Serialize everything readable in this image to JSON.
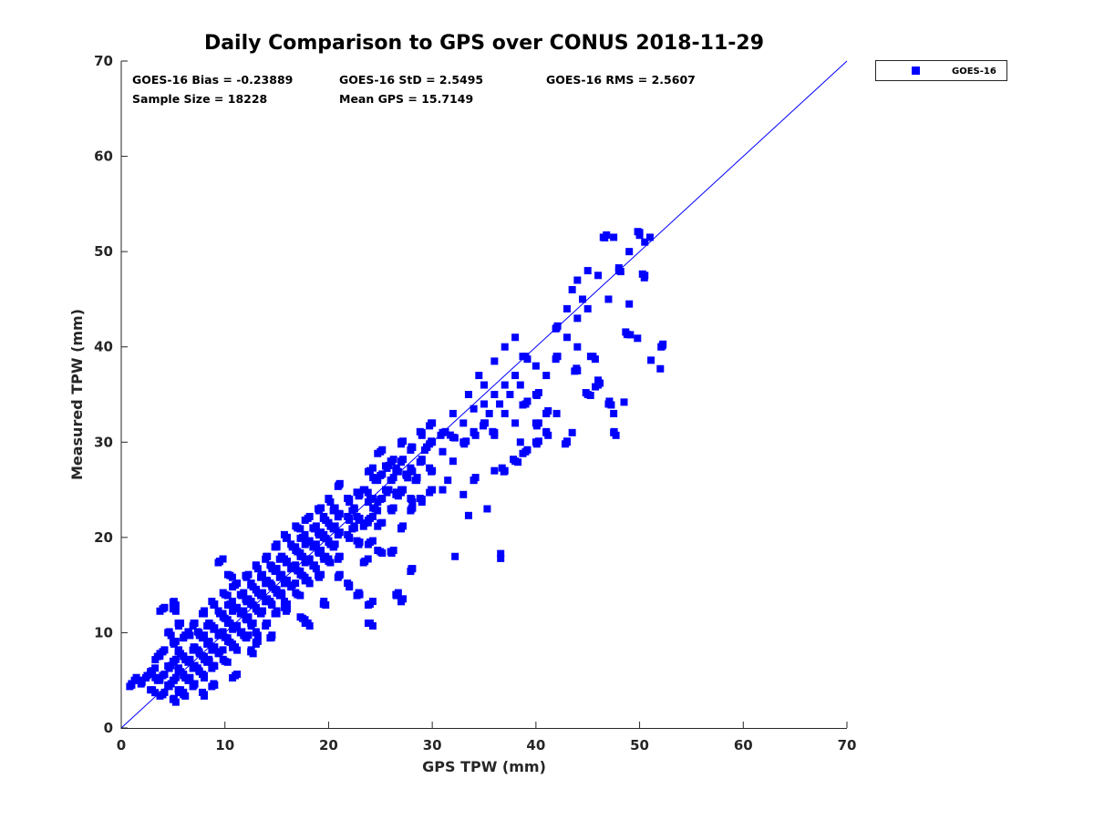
{
  "chart_data": {
    "type": "scatter",
    "title": "Daily Comparison to GPS over CONUS 2018-11-29",
    "xlabel": "GPS TPW (mm)",
    "ylabel": "Measured TPW (mm)",
    "xlim": [
      0,
      70
    ],
    "ylim": [
      0,
      70
    ],
    "xticks": [
      "0",
      "10",
      "20",
      "30",
      "40",
      "50",
      "60",
      "70"
    ],
    "yticks": [
      "0",
      "10",
      "20",
      "30",
      "40",
      "50",
      "60",
      "70"
    ],
    "grid": false,
    "legend": {
      "position": "outside-top-right",
      "entries": [
        "GOES-16"
      ]
    },
    "reference_line": {
      "label": "1:1",
      "from": [
        0,
        0
      ],
      "to": [
        70,
        70
      ]
    },
    "stats": {
      "bias": "GOES-16 Bias = -0.23889",
      "std": "GOES-16 StD = 2.5495",
      "rms": "GOES-16 RMS = 2.5607",
      "sample_size": "Sample Size = 18228",
      "mean_gps": "Mean GPS = 15.7149"
    },
    "series": [
      {
        "name": "GOES-16",
        "color": "#0000ff",
        "marker": "square",
        "points": [
          [
            1,
            4.5
          ],
          [
            1.5,
            5
          ],
          [
            2,
            4.8
          ],
          [
            2.5,
            5.5
          ],
          [
            3,
            4
          ],
          [
            3,
            6
          ],
          [
            3.5,
            5
          ],
          [
            3.5,
            7.5
          ],
          [
            4,
            3.5
          ],
          [
            4,
            5.5
          ],
          [
            4,
            8
          ],
          [
            4.5,
            4.5
          ],
          [
            4.5,
            6.5
          ],
          [
            4.5,
            10
          ],
          [
            5,
            3
          ],
          [
            5,
            5
          ],
          [
            5,
            7
          ],
          [
            5,
            9
          ],
          [
            5,
            12.5
          ],
          [
            5.5,
            4
          ],
          [
            5.5,
            6
          ],
          [
            5.5,
            8
          ],
          [
            5.5,
            11
          ],
          [
            6,
            3.5
          ],
          [
            6,
            5.5
          ],
          [
            6,
            7.5
          ],
          [
            6,
            9.5
          ],
          [
            6.5,
            5
          ],
          [
            6.5,
            7
          ],
          [
            6.5,
            10
          ],
          [
            7,
            4.5
          ],
          [
            7,
            6.5
          ],
          [
            7,
            8.5
          ],
          [
            7,
            11
          ],
          [
            7.5,
            6
          ],
          [
            7.5,
            8
          ],
          [
            7.5,
            10
          ],
          [
            8,
            5.5
          ],
          [
            8,
            7.5
          ],
          [
            8,
            9.5
          ],
          [
            8,
            12
          ],
          [
            8.5,
            7
          ],
          [
            8.5,
            9
          ],
          [
            8.5,
            11
          ],
          [
            9,
            6.5
          ],
          [
            9,
            8.5
          ],
          [
            9,
            10.5
          ],
          [
            9,
            13
          ],
          [
            9.5,
            8
          ],
          [
            9.5,
            10
          ],
          [
            9.5,
            12
          ],
          [
            9.5,
            17.5
          ],
          [
            10,
            7
          ],
          [
            10,
            9.5
          ],
          [
            10,
            11.5
          ],
          [
            10,
            14
          ],
          [
            10.5,
            9
          ],
          [
            10.5,
            11
          ],
          [
            10.5,
            13
          ],
          [
            10.5,
            16
          ],
          [
            11,
            8.5
          ],
          [
            11,
            10.5
          ],
          [
            11,
            12.5
          ],
          [
            11,
            15
          ],
          [
            11.5,
            10
          ],
          [
            11.5,
            12
          ],
          [
            11.5,
            14
          ],
          [
            12,
            9.5
          ],
          [
            12,
            11.5
          ],
          [
            12,
            13.5
          ],
          [
            12,
            16
          ],
          [
            12.5,
            11
          ],
          [
            12.5,
            13
          ],
          [
            12.5,
            15
          ],
          [
            13,
            10
          ],
          [
            13,
            12.5
          ],
          [
            13,
            14.5
          ],
          [
            13,
            17
          ],
          [
            13.5,
            12
          ],
          [
            13.5,
            14
          ],
          [
            13.5,
            16
          ],
          [
            14,
            11
          ],
          [
            14,
            13.5
          ],
          [
            14,
            15.5
          ],
          [
            14,
            18
          ],
          [
            14.5,
            13
          ],
          [
            14.5,
            15
          ],
          [
            14.5,
            17
          ],
          [
            15,
            12
          ],
          [
            15,
            14.5
          ],
          [
            15,
            16.5
          ],
          [
            15,
            19
          ],
          [
            15.5,
            14
          ],
          [
            15.5,
            16
          ],
          [
            15.5,
            18
          ],
          [
            16,
            13
          ],
          [
            16,
            15.5
          ],
          [
            16,
            17.5
          ],
          [
            16,
            20
          ],
          [
            16.5,
            15
          ],
          [
            16.5,
            17
          ],
          [
            16.5,
            19
          ],
          [
            17,
            14
          ],
          [
            17,
            16.5
          ],
          [
            17,
            18.5
          ],
          [
            17,
            21
          ],
          [
            17.5,
            16
          ],
          [
            17.5,
            18
          ],
          [
            17.5,
            20
          ],
          [
            18,
            15.5
          ],
          [
            18,
            17.5
          ],
          [
            18,
            19.5
          ],
          [
            18,
            22
          ],
          [
            18.5,
            17
          ],
          [
            18.5,
            19
          ],
          [
            18.5,
            21
          ],
          [
            19,
            16
          ],
          [
            19,
            18.5
          ],
          [
            19,
            20.5
          ],
          [
            19,
            23
          ],
          [
            19.5,
            18
          ],
          [
            19.5,
            20
          ],
          [
            19.5,
            22
          ],
          [
            20,
            17.5
          ],
          [
            20,
            19.5
          ],
          [
            20,
            21.5
          ],
          [
            20,
            24
          ],
          [
            20.5,
            19
          ],
          [
            20.5,
            21
          ],
          [
            20.5,
            23
          ],
          [
            21,
            18
          ],
          [
            21,
            20.5
          ],
          [
            21,
            22.5
          ],
          [
            21,
            25.5
          ],
          [
            22,
            20
          ],
          [
            22,
            22
          ],
          [
            22,
            24
          ],
          [
            22.5,
            21
          ],
          [
            22.5,
            23
          ],
          [
            23,
            19.5
          ],
          [
            23,
            22
          ],
          [
            23,
            24.5
          ],
          [
            23.5,
            21.5
          ],
          [
            23.5,
            25
          ],
          [
            24,
            22
          ],
          [
            24,
            24
          ],
          [
            24,
            27
          ],
          [
            24.5,
            23
          ],
          [
            24.5,
            26
          ],
          [
            25,
            21.5
          ],
          [
            25,
            24
          ],
          [
            25,
            26.5
          ],
          [
            25,
            29
          ],
          [
            25.5,
            25
          ],
          [
            25.5,
            27.5
          ],
          [
            26,
            23
          ],
          [
            26,
            26
          ],
          [
            26,
            28
          ],
          [
            26.5,
            24.5
          ],
          [
            26.5,
            27
          ],
          [
            27,
            25
          ],
          [
            27,
            28
          ],
          [
            27,
            30
          ],
          [
            27.5,
            26.5
          ],
          [
            28,
            24
          ],
          [
            28,
            27
          ],
          [
            28,
            29.5
          ],
          [
            28.5,
            26
          ],
          [
            29,
            28
          ],
          [
            29,
            31
          ],
          [
            29.5,
            29.5
          ],
          [
            30,
            27
          ],
          [
            30,
            30
          ],
          [
            30,
            32
          ],
          [
            31,
            29
          ],
          [
            31,
            31
          ],
          [
            32,
            28
          ],
          [
            32,
            30.5
          ],
          [
            32,
            33
          ],
          [
            33,
            30
          ],
          [
            33,
            32
          ],
          [
            33.5,
            35
          ],
          [
            34,
            31
          ],
          [
            34,
            33.5
          ],
          [
            34.5,
            37
          ],
          [
            35,
            32
          ],
          [
            35,
            34
          ],
          [
            35,
            36
          ],
          [
            35.5,
            33
          ],
          [
            36,
            31
          ],
          [
            36,
            35
          ],
          [
            36,
            38.5
          ],
          [
            36.5,
            34
          ],
          [
            37,
            33
          ],
          [
            37,
            36
          ],
          [
            37,
            40
          ],
          [
            37.5,
            35
          ],
          [
            38,
            32
          ],
          [
            38,
            37
          ],
          [
            38,
            41
          ],
          [
            38.5,
            36
          ],
          [
            39,
            34
          ],
          [
            39,
            39
          ],
          [
            40,
            35
          ],
          [
            40,
            38
          ],
          [
            41,
            33
          ],
          [
            41,
            37
          ],
          [
            42,
            39
          ],
          [
            42,
            42
          ],
          [
            43,
            41
          ],
          [
            43,
            44
          ],
          [
            43.5,
            46
          ],
          [
            44,
            43
          ],
          [
            44,
            47
          ],
          [
            44.5,
            45
          ],
          [
            45,
            44
          ],
          [
            45,
            48
          ],
          [
            46,
            47.5
          ],
          [
            46.5,
            51.5
          ],
          [
            47,
            45
          ],
          [
            47.5,
            51.5
          ],
          [
            48,
            48
          ],
          [
            49,
            50
          ],
          [
            50,
            52
          ],
          [
            50.5,
            51
          ],
          [
            51,
            51.5
          ],
          [
            14.5,
            9.5
          ],
          [
            16,
            12.5
          ],
          [
            17.5,
            11.5
          ],
          [
            18,
            11
          ],
          [
            19.5,
            13
          ],
          [
            21,
            16
          ],
          [
            22,
            15
          ],
          [
            23,
            14
          ],
          [
            24,
            13
          ],
          [
            24,
            11
          ],
          [
            25,
            18.5
          ],
          [
            26,
            18.5
          ],
          [
            26.5,
            14
          ],
          [
            27,
            13.5
          ],
          [
            28,
            16.7
          ],
          [
            23.5,
            17.5
          ],
          [
            24,
            19.5
          ],
          [
            27,
            21
          ],
          [
            28,
            23
          ],
          [
            29,
            24
          ],
          [
            30,
            25
          ],
          [
            31,
            25
          ],
          [
            31.5,
            26
          ],
          [
            33,
            24.5
          ],
          [
            33.5,
            22.3
          ],
          [
            32.2,
            18
          ],
          [
            34,
            26
          ],
          [
            35.3,
            23
          ],
          [
            36,
            27
          ],
          [
            36.6,
            18.3
          ],
          [
            36.6,
            17.8
          ],
          [
            37,
            27
          ],
          [
            38,
            28
          ],
          [
            39,
            29
          ],
          [
            40,
            30
          ],
          [
            41,
            31
          ],
          [
            42,
            33
          ],
          [
            43,
            30
          ],
          [
            43.5,
            31
          ],
          [
            44,
            37.5
          ],
          [
            45,
            35
          ],
          [
            46,
            36
          ],
          [
            47,
            34
          ],
          [
            47.5,
            31
          ],
          [
            48.5,
            34.2
          ],
          [
            47.5,
            33
          ],
          [
            44,
            40
          ],
          [
            45.5,
            39
          ],
          [
            46,
            36.5
          ],
          [
            48.8,
            41.3
          ],
          [
            49.8,
            40.9
          ],
          [
            51.1,
            38.6
          ],
          [
            52.2,
            40.1
          ],
          [
            52,
            37.7
          ],
          [
            49,
            44.5
          ],
          [
            50.5,
            47.5
          ],
          [
            40,
            32
          ],
          [
            38.5,
            30
          ],
          [
            11,
            5.5
          ],
          [
            12.5,
            8
          ],
          [
            13,
            9
          ],
          [
            9,
            4.5
          ],
          [
            8,
            3.5
          ],
          [
            4,
            12.5
          ],
          [
            5,
            13.2
          ]
        ]
      }
    ]
  }
}
